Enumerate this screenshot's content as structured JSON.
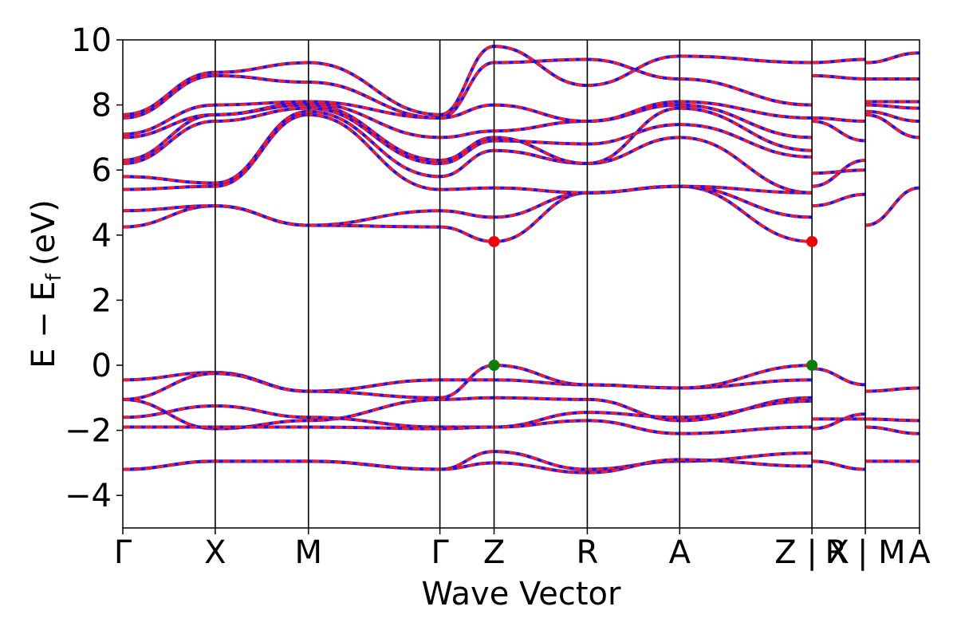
{
  "chart_data": {
    "type": "line",
    "title": "",
    "xlabel": "Wave Vector",
    "ylabel": "E − Eₓ (eV)",
    "ylabel_main": "E − E",
    "ylabel_sub": "f",
    "ylabel_unit": "(eV)",
    "ylim": [
      -5,
      10
    ],
    "yticks": [
      -4,
      -2,
      0,
      2,
      4,
      6,
      8,
      10
    ],
    "ytick_labels": [
      "−4",
      "−2",
      "0",
      "2",
      "4",
      "6",
      "8",
      "10"
    ],
    "xlim": [
      0,
      100
    ],
    "kpoints": [
      {
        "label": "Γ",
        "x": 0
      },
      {
        "label": "X",
        "x": 11.6
      },
      {
        "label": "M",
        "x": 23.3
      },
      {
        "label": "Γ",
        "x": 39.8
      },
      {
        "label": "Z",
        "x": 46.6
      },
      {
        "label": "R",
        "x": 58.3
      },
      {
        "label": "A",
        "x": 69.9
      },
      {
        "label": "Z | X",
        "x": 86.5
      },
      {
        "label": "R | M",
        "x": 93.2
      },
      {
        "label": "A",
        "x": 100
      }
    ],
    "segment_breaks": [
      86.5,
      93.2
    ],
    "grid": false,
    "legend": "none",
    "series": [
      {
        "values": [
          [
            0,
            -0.45
          ],
          [
            11.6,
            -0.22
          ],
          [
            23.3,
            -0.8
          ],
          [
            39.8,
            -0.45
          ],
          [
            46.6,
            -0.45
          ],
          [
            58.3,
            -0.6
          ],
          [
            69.9,
            -0.7
          ],
          [
            86.5,
            -0.45
          ],
          [
            86.5,
            -0.1
          ],
          [
            93.2,
            -0.6
          ],
          [
            93.2,
            -0.8
          ],
          [
            100,
            -0.7
          ]
        ]
      },
      {
        "values": [
          [
            0,
            -1.05
          ],
          [
            11.6,
            -0.25
          ],
          [
            23.3,
            -0.8
          ],
          [
            39.8,
            -1.0
          ],
          [
            46.6,
            0.0
          ],
          [
            58.3,
            -0.6
          ],
          [
            69.9,
            -0.7
          ],
          [
            86.5,
            0.0
          ]
        ]
      },
      {
        "values": [
          [
            0,
            -1.05
          ],
          [
            11.6,
            -1.95
          ],
          [
            23.3,
            -1.7
          ],
          [
            39.8,
            -1.05
          ],
          [
            46.6,
            -1.0
          ],
          [
            58.3,
            -1.05
          ],
          [
            69.9,
            -1.7
          ],
          [
            86.5,
            -1.0
          ],
          [
            86.5,
            -1.65
          ],
          [
            93.2,
            -1.65
          ],
          [
            93.2,
            -1.65
          ],
          [
            100,
            -1.7
          ]
        ]
      },
      {
        "values": [
          [
            0,
            -1.6
          ],
          [
            11.6,
            -1.25
          ],
          [
            23.3,
            -1.6
          ],
          [
            39.8,
            -1.9
          ],
          [
            46.6,
            -1.9
          ],
          [
            58.3,
            -1.45
          ],
          [
            69.9,
            -1.6
          ],
          [
            86.5,
            -1.1
          ],
          [
            86.5,
            -1.95
          ],
          [
            93.2,
            -1.5
          ],
          [
            93.2,
            -1.9
          ],
          [
            100,
            -2.1
          ]
        ]
      },
      {
        "values": [
          [
            0,
            -1.9
          ],
          [
            11.6,
            -1.9
          ],
          [
            23.3,
            -1.9
          ],
          [
            39.8,
            -1.95
          ],
          [
            46.6,
            -1.9
          ],
          [
            58.3,
            -1.7
          ],
          [
            69.9,
            -2.1
          ],
          [
            86.5,
            -1.9
          ]
        ]
      },
      {
        "values": [
          [
            0,
            -3.2
          ],
          [
            11.6,
            -2.95
          ],
          [
            23.3,
            -2.95
          ],
          [
            39.8,
            -3.2
          ],
          [
            46.6,
            -2.65
          ],
          [
            58.3,
            -3.2
          ],
          [
            69.9,
            -2.95
          ],
          [
            86.5,
            -2.7
          ],
          [
            86.5,
            -2.95
          ],
          [
            93.2,
            -3.2
          ],
          [
            93.2,
            -2.95
          ],
          [
            100,
            -2.95
          ]
        ]
      },
      {
        "values": [
          [
            0,
            -3.2
          ],
          [
            11.6,
            -2.95
          ],
          [
            23.3,
            -2.95
          ],
          [
            39.8,
            -3.2
          ],
          [
            46.6,
            -3.0
          ],
          [
            58.3,
            -3.3
          ],
          [
            69.9,
            -2.9
          ],
          [
            86.5,
            -3.1
          ]
        ]
      },
      {
        "values": [
          [
            0,
            4.25
          ],
          [
            11.6,
            4.9
          ],
          [
            23.3,
            4.3
          ],
          [
            39.8,
            4.25
          ],
          [
            46.6,
            3.8
          ],
          [
            58.3,
            5.3
          ],
          [
            69.9,
            5.5
          ],
          [
            86.5,
            3.8
          ]
        ]
      },
      {
        "values": [
          [
            0,
            4.75
          ],
          [
            11.6,
            4.9
          ],
          [
            23.3,
            4.3
          ],
          [
            39.8,
            4.75
          ],
          [
            46.6,
            4.55
          ],
          [
            58.3,
            5.3
          ],
          [
            69.9,
            5.5
          ],
          [
            86.5,
            4.55
          ],
          [
            86.5,
            4.9
          ],
          [
            93.2,
            5.25
          ],
          [
            93.2,
            4.3
          ],
          [
            100,
            5.45
          ]
        ]
      },
      {
        "values": [
          [
            0,
            5.4
          ],
          [
            11.6,
            5.5
          ],
          [
            23.3,
            7.7
          ],
          [
            39.8,
            5.4
          ],
          [
            46.6,
            5.45
          ],
          [
            58.3,
            5.3
          ],
          [
            69.9,
            5.5
          ],
          [
            86.5,
            5.3
          ],
          [
            86.5,
            5.5
          ],
          [
            93.2,
            6.3
          ],
          [
            93.2,
            7.7
          ],
          [
            100,
            7.0
          ]
        ]
      },
      {
        "values": [
          [
            0,
            5.8
          ],
          [
            11.6,
            5.6
          ],
          [
            23.3,
            7.8
          ],
          [
            39.8,
            5.8
          ],
          [
            46.6,
            6.6
          ],
          [
            58.3,
            6.2
          ],
          [
            69.9,
            7.0
          ],
          [
            86.5,
            5.3
          ],
          [
            86.5,
            5.9
          ],
          [
            93.2,
            6.0
          ],
          [
            93.2,
            7.8
          ],
          [
            100,
            7.5
          ]
        ]
      },
      {
        "values": [
          [
            0,
            6.2
          ],
          [
            11.6,
            7.5
          ],
          [
            23.3,
            7.9
          ],
          [
            39.8,
            6.2
          ],
          [
            46.6,
            6.9
          ],
          [
            58.3,
            6.8
          ],
          [
            69.9,
            7.4
          ],
          [
            86.5,
            6.4
          ],
          [
            86.5,
            7.5
          ],
          [
            93.2,
            6.9
          ],
          [
            93.2,
            8.0
          ],
          [
            100,
            7.9
          ]
        ]
      },
      {
        "values": [
          [
            0,
            6.3
          ],
          [
            11.6,
            7.7
          ],
          [
            23.3,
            8.0
          ],
          [
            39.8,
            6.3
          ],
          [
            46.6,
            7.0
          ],
          [
            58.3,
            6.2
          ],
          [
            69.9,
            7.9
          ],
          [
            86.5,
            6.6
          ],
          [
            86.5,
            7.6
          ],
          [
            93.2,
            7.5
          ],
          [
            93.2,
            8.1
          ],
          [
            100,
            8.1
          ]
        ]
      },
      {
        "values": [
          [
            0,
            7.0
          ],
          [
            11.6,
            7.7
          ],
          [
            23.3,
            8.05
          ],
          [
            39.8,
            7.0
          ],
          [
            46.6,
            7.2
          ],
          [
            58.3,
            7.5
          ],
          [
            69.9,
            8.0
          ],
          [
            86.5,
            7.0
          ],
          [
            86.5,
            8.9
          ],
          [
            93.2,
            8.8
          ],
          [
            93.2,
            8.8
          ],
          [
            100,
            8.8
          ]
        ]
      },
      {
        "values": [
          [
            0,
            7.1
          ],
          [
            11.6,
            8.0
          ],
          [
            23.3,
            8.1
          ],
          [
            39.8,
            7.6
          ],
          [
            46.6,
            8.0
          ],
          [
            58.3,
            7.5
          ],
          [
            69.9,
            8.1
          ],
          [
            86.5,
            7.6
          ],
          [
            86.5,
            9.3
          ],
          [
            93.2,
            9.4
          ],
          [
            93.2,
            9.3
          ],
          [
            100,
            9.6
          ]
        ]
      },
      {
        "values": [
          [
            0,
            7.6
          ],
          [
            11.6,
            8.9
          ],
          [
            23.3,
            8.7
          ],
          [
            39.8,
            7.6
          ],
          [
            46.6,
            9.3
          ],
          [
            58.3,
            9.4
          ],
          [
            69.9,
            8.8
          ],
          [
            86.5,
            8.0
          ]
        ]
      },
      {
        "values": [
          [
            0,
            7.7
          ],
          [
            11.6,
            9.0
          ],
          [
            23.3,
            9.3
          ],
          [
            39.8,
            7.7
          ],
          [
            46.6,
            9.8
          ],
          [
            58.3,
            8.6
          ],
          [
            69.9,
            9.5
          ],
          [
            86.5,
            9.3
          ]
        ]
      }
    ],
    "markers": [
      {
        "x": 46.6,
        "y": 3.8,
        "color": "#ee0000"
      },
      {
        "x": 86.5,
        "y": 3.8,
        "color": "#ee0000"
      },
      {
        "x": 46.6,
        "y": 0.0,
        "color": "#0a800a"
      },
      {
        "x": 86.5,
        "y": 0.0,
        "color": "#0a800a"
      }
    ],
    "line_colors": {
      "primary": "#1414ff",
      "overlay": "#ff1a1a"
    }
  }
}
